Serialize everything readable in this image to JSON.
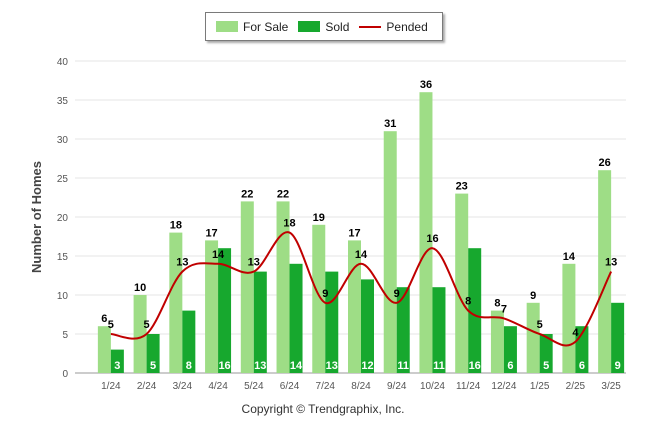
{
  "chart_data": {
    "type": "bar",
    "categories": [
      "1/24",
      "2/24",
      "3/24",
      "4/24",
      "5/24",
      "6/24",
      "7/24",
      "8/24",
      "9/24",
      "10/24",
      "11/24",
      "12/24",
      "1/25",
      "2/25",
      "3/25"
    ],
    "series": [
      {
        "name": "For Sale",
        "type": "bar",
        "color": "#9edd86",
        "values": [
          6,
          10,
          18,
          17,
          22,
          22,
          19,
          17,
          31,
          36,
          23,
          8,
          9,
          14,
          26
        ]
      },
      {
        "name": "Sold",
        "type": "bar",
        "color": "#17a82e",
        "values": [
          3,
          5,
          8,
          16,
          13,
          14,
          13,
          12,
          11,
          11,
          16,
          6,
          5,
          6,
          9
        ]
      },
      {
        "name": "Pended",
        "type": "line",
        "color": "#c00000",
        "values": [
          5,
          5,
          13,
          14,
          13,
          18,
          9,
          14,
          9,
          16,
          8,
          7,
          5,
          4,
          13
        ]
      }
    ],
    "ylabel": "Number of Homes",
    "xlabel": "",
    "ylim": [
      0,
      40
    ],
    "yticks": [
      0,
      5,
      10,
      15,
      20,
      25,
      30,
      35,
      40
    ],
    "grid": true,
    "legend_position": "top-center"
  },
  "copyright": "Copyright © Trendgraphix, Inc."
}
